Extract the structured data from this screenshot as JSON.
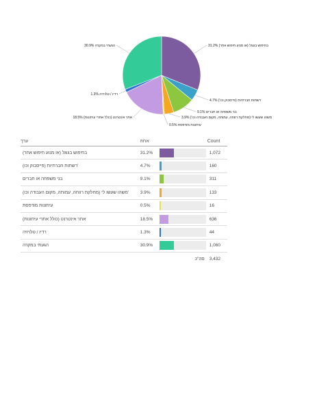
{
  "chart_data": {
    "type": "pie",
    "slices": [
      {
        "label": "בחיפוש בגוגל (או מנוע חיפוש אחר)",
        "percent": 31.2,
        "count": "1,072",
        "color": "#7c5c9e",
        "pie_label": "31.2% בחיפוש בגוגל (או מנוע חיפוש אחר)"
      },
      {
        "label": "רשתות חברתיות (פייסבוק וכו')",
        "percent": 4.7,
        "count": "160",
        "color": "#3aa2c9",
        "pie_label": "4.7% רשתות חברתיות (פייסבוק וכו')"
      },
      {
        "label": "בני משפחה או חברים",
        "percent": 9.1,
        "count": "311",
        "color": "#8dc63f",
        "pie_label": "9.1% בני משפחה או חברים"
      },
      {
        "label": "משהו שעשו לי (מחלקת רווחה, עמותה, מקום העבודה וכו')",
        "percent": 3.9,
        "count": "133",
        "color": "#f5a623",
        "pie_label": "3.9% משהו שעשו לי (מחלקת רווחה, עמותה, מקום העבודה וכו')"
      },
      {
        "label": "עיתונות מודפסת",
        "percent": 0.5,
        "count": "16",
        "color": "#e8e050",
        "pie_label": "0.5% עיתונות מודפסת"
      },
      {
        "label": "אתר אינטרנט (כולל אתרי עיתונות)",
        "percent": 18.5,
        "count": "636",
        "color": "#c39be3",
        "pie_label": "18.5% אתר אינטרנט (כולל אתרי עיתונות)"
      },
      {
        "label": "רדיו / טלויזיה",
        "percent": 1.3,
        "count": "44",
        "color": "#2f6fd6",
        "pie_label": "1.3% רדיו / טלויזיה"
      },
      {
        "label": "הגעתי במקרה",
        "percent": 30.9,
        "count": "1,060",
        "color": "#33cc99",
        "pie_label": "30.9% הגעתי במקרה"
      }
    ]
  },
  "table": {
    "header_label": "ערך",
    "header_pct": "אחוז",
    "header_count": "Count",
    "rows": [
      {
        "label": "(בחיפוש בגוגל (או מנוע חיפוש אחר",
        "pct": "31.2%",
        "count": "1,072"
      },
      {
        "label": "(רשתות חברתיות (פייסבוק וכו'",
        "pct": "4.7%",
        "count": "160"
      },
      {
        "label": "בני משפחה או חברים",
        "pct": "9.1%",
        "count": "311"
      },
      {
        "label": "(משהו שעשו לי (מחלקת רווחה, עמותה, מקום העבודה וכו'",
        "pct": "3.9%",
        "count": "133"
      },
      {
        "label": "עיתונות מודפסת",
        "pct": "0.5%",
        "count": "16"
      },
      {
        "label": "(אתר אינטרנט (כולל אתרי עיתונות",
        "pct": "18.5%",
        "count": "636"
      },
      {
        "label": "רדיו / טלויזיה",
        "pct": "1.3%",
        "count": "44"
      },
      {
        "label": "הגעתי במקרה",
        "pct": "30.9%",
        "count": "1,060"
      }
    ],
    "total_label": "סה\"כ",
    "total_count": "3,432"
  }
}
